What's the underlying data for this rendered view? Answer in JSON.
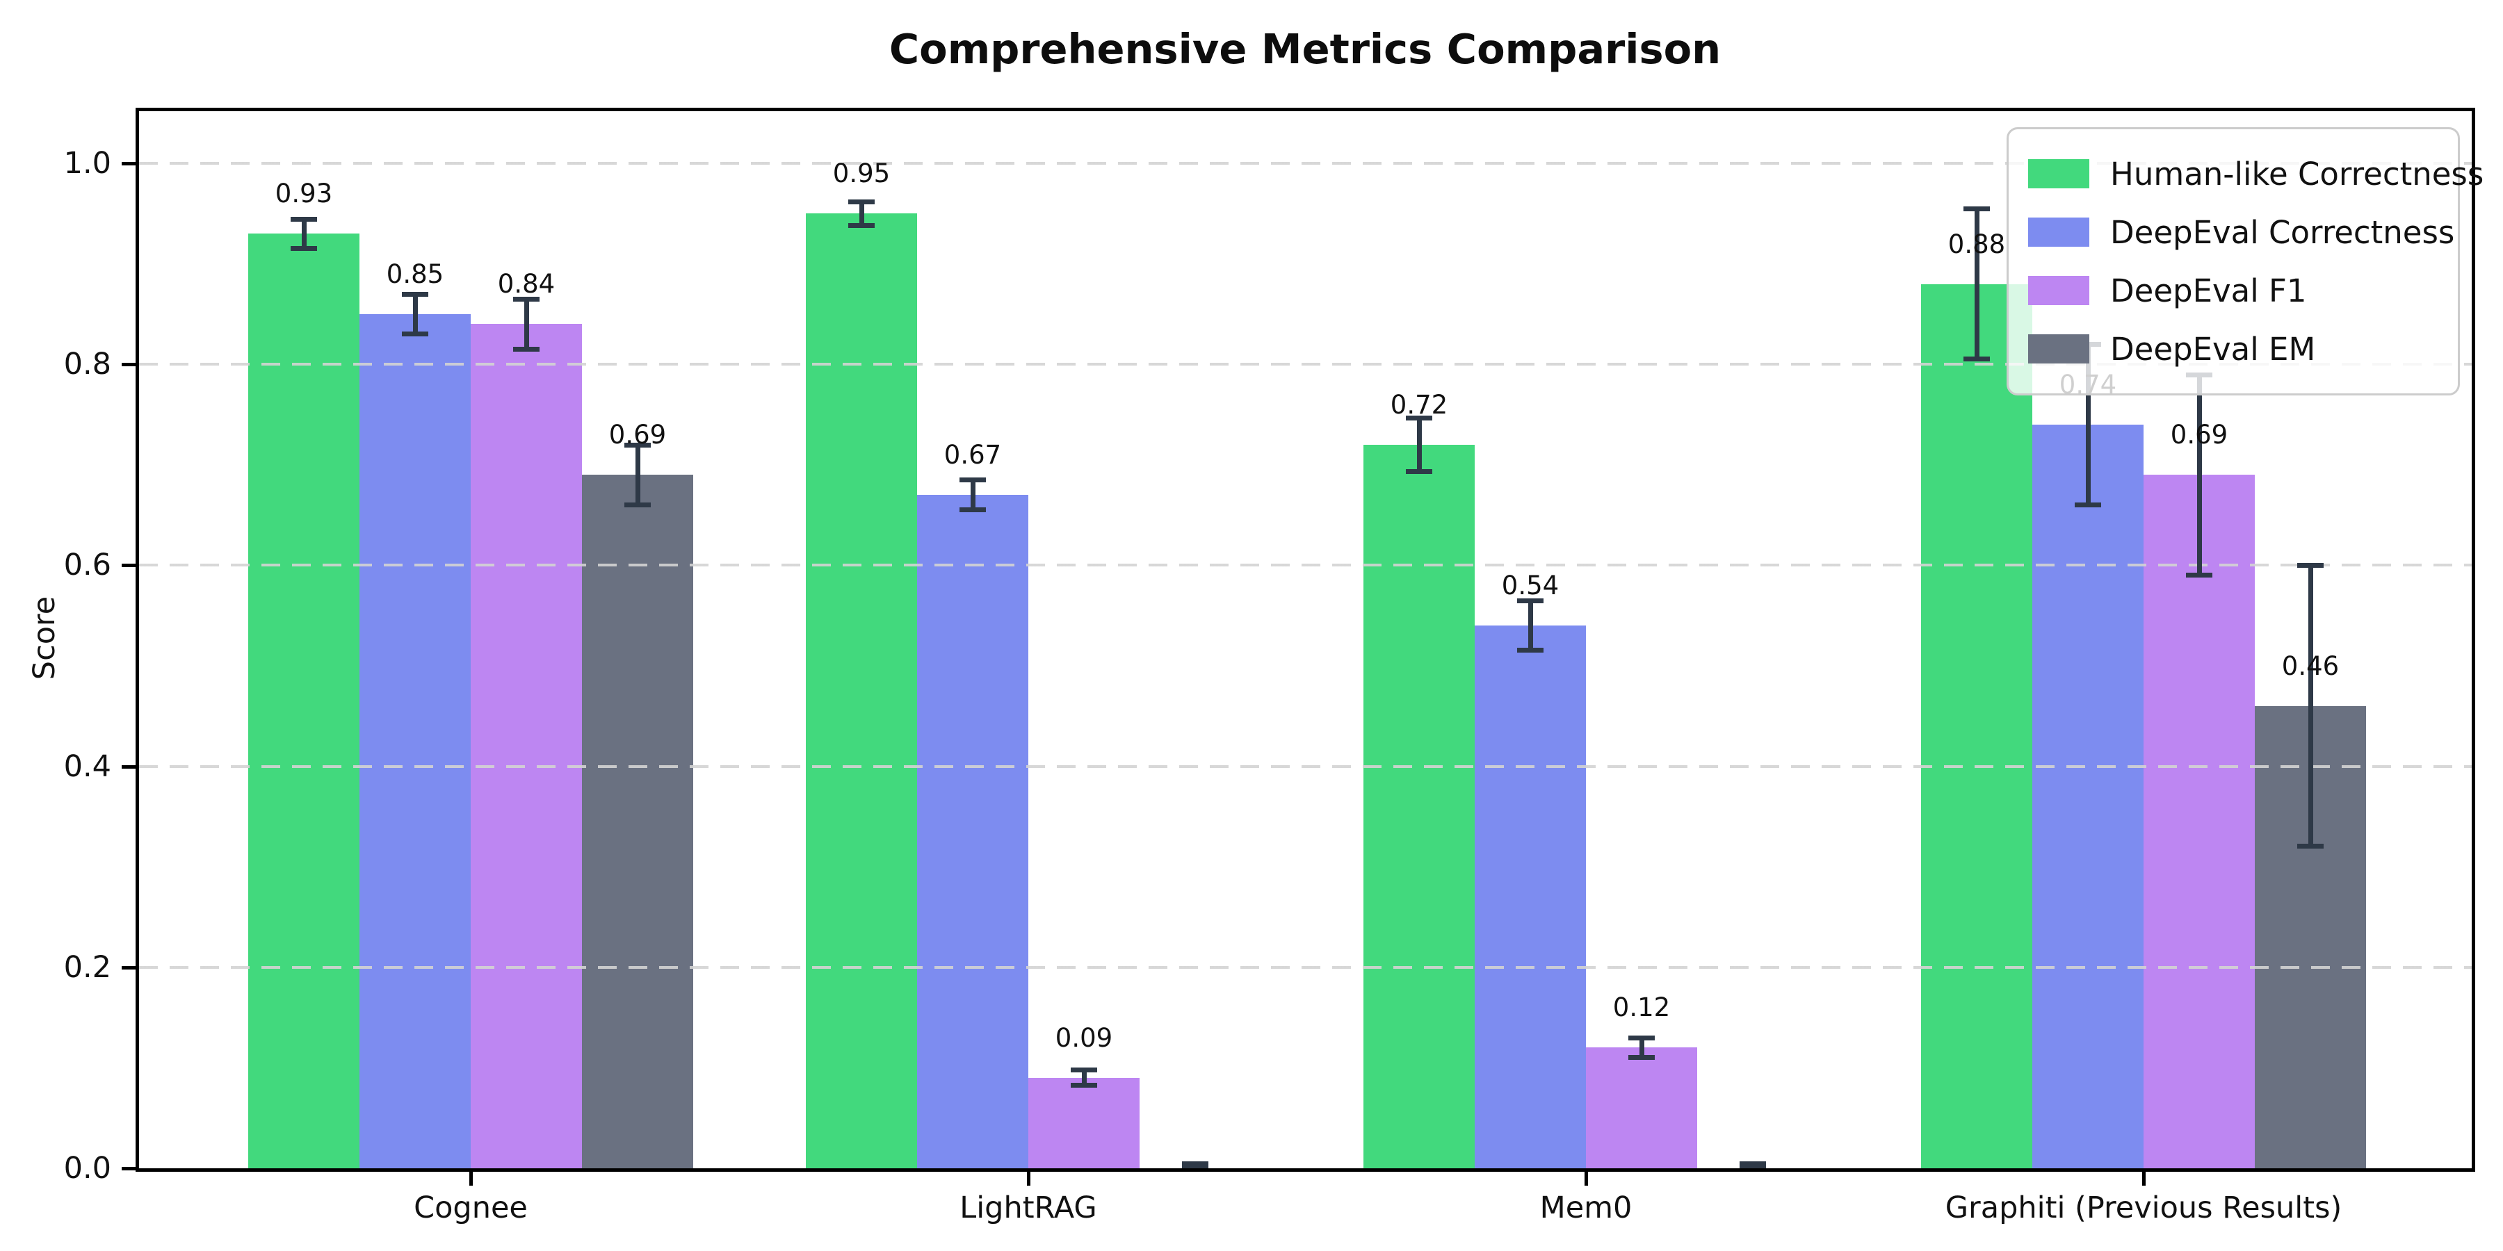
{
  "title": "Comprehensive Metrics Comparison",
  "chart_data": {
    "type": "bar",
    "title": "Comprehensive Metrics Comparison",
    "xlabel": "",
    "ylabel": "Score",
    "ylim": [
      0.0,
      1.055
    ],
    "yticks": [
      0.0,
      0.2,
      0.4,
      0.6,
      0.8,
      1.0
    ],
    "grid": "horizontal-dashed",
    "grid_color": "#d3d3d3",
    "legend_position": "upper-right",
    "error_bar_color": "#2e3947",
    "bar_label_format": "0.00",
    "zero_bars_unlabeled": true,
    "categories": [
      "Cognee",
      "LightRAG",
      "Mem0",
      "Graphiti (Previous Results)"
    ],
    "series": [
      {
        "name": "Human-like Correctness",
        "color": "#42d97d",
        "values": [
          0.93,
          0.95,
          0.72,
          0.88
        ],
        "errors": [
          0.015,
          0.012,
          0.027,
          0.075
        ]
      },
      {
        "name": "DeepEval Correctness",
        "color": "#7d8cf0",
        "values": [
          0.85,
          0.67,
          0.54,
          0.74
        ],
        "errors": [
          0.02,
          0.015,
          0.025,
          0.08
        ]
      },
      {
        "name": "DeepEval F1",
        "color": "#bd86f2",
        "values": [
          0.84,
          0.09,
          0.12,
          0.69
        ],
        "errors": [
          0.025,
          0.008,
          0.01,
          0.1
        ]
      },
      {
        "name": "DeepEval EM",
        "color": "#6a7181",
        "values": [
          0.69,
          0.0,
          0.0,
          0.46
        ],
        "errors": [
          0.03,
          0.005,
          0.005,
          0.14
        ]
      }
    ]
  }
}
